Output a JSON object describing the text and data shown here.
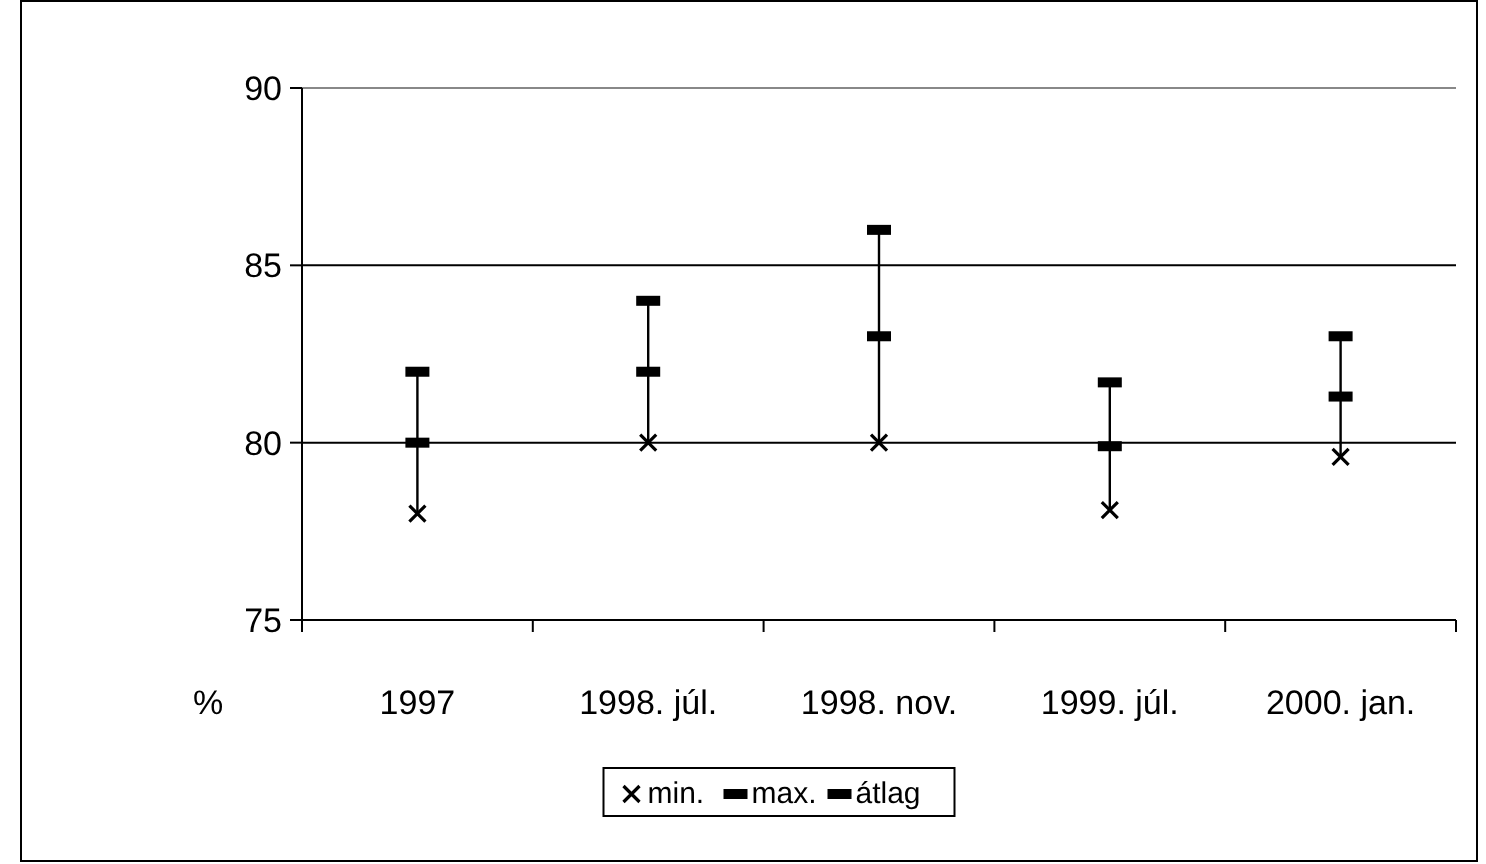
{
  "chart_data": {
    "type": "scatter",
    "ylabel": "%",
    "categories": [
      "1997",
      "1998. júl.",
      "1998. nov.",
      "1999. júl.",
      "2000. jan."
    ],
    "series": [
      {
        "type": "bar",
        "color": "#000000",
        "base": [
          78,
          80,
          80,
          78.1,
          79.6
        ],
        "values": [
          4,
          4,
          6,
          3.6,
          3.4
        ]
      },
      {
        "name": "min.",
        "color": "#000000",
        "marker": "cross",
        "values": [
          78,
          80,
          80,
          78.1,
          79.6
        ]
      },
      {
        "name": "max.",
        "color": "#000000",
        "marker": "square",
        "values": [
          82,
          84,
          86,
          81.7,
          83
        ]
      },
      {
        "name": "átlag",
        "color": "#000000",
        "marker": "square",
        "values": [
          80,
          82,
          83,
          79.9,
          81.3
        ]
      }
    ],
    "ylim": [
      75,
      90
    ],
    "yticks": [
      75,
      80,
      85,
      90
    ],
    "grid": "y",
    "legend": "bottom"
  }
}
